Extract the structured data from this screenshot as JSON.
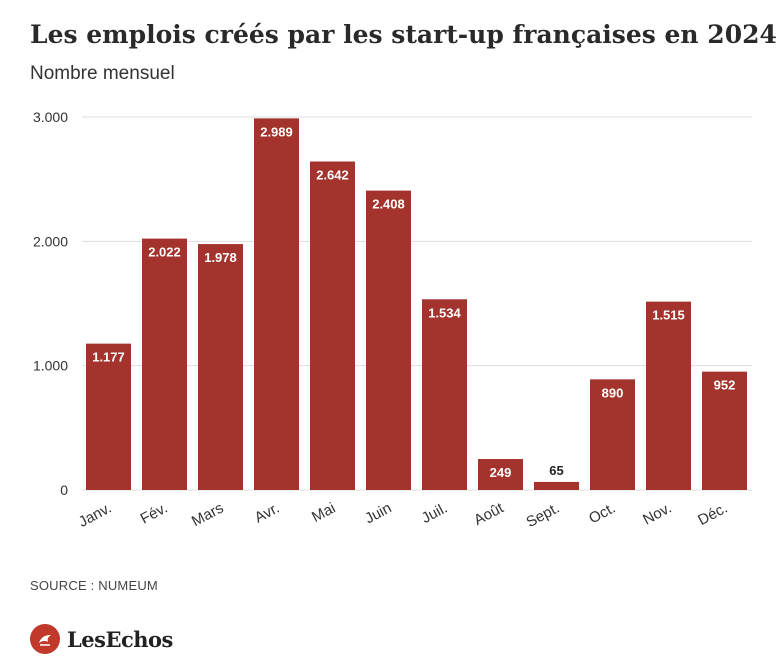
{
  "header": {
    "title": "Les emplois créés par les start-up françaises en 2024",
    "subtitle": "Nombre mensuel"
  },
  "footer": {
    "source": "SOURCE : NUMEUM",
    "brand": "LesEchos"
  },
  "colors": {
    "bar": "#a3332c",
    "grid": "#dddddd",
    "label_inside": "#ffffff",
    "label_outside": "#222222"
  },
  "chart_data": {
    "type": "bar",
    "title": "Les emplois créés par les start-up françaises en 2024",
    "subtitle": "Nombre mensuel",
    "categories": [
      "Janv.",
      "Fév.",
      "Mars",
      "Avr.",
      "Mai",
      "Juin",
      "Juil.",
      "Août",
      "Sept.",
      "Oct.",
      "Nov.",
      "Déc."
    ],
    "values": [
      1177,
      2022,
      1978,
      2989,
      2642,
      2408,
      1534,
      249,
      65,
      890,
      1515,
      952
    ],
    "value_labels": [
      "1.177",
      "2.022",
      "1.978",
      "2.989",
      "2.642",
      "2.408",
      "1.534",
      "249",
      "65",
      "890",
      "1.515",
      "952"
    ],
    "ylim": [
      0,
      3000
    ],
    "yticks": [
      0,
      1000,
      2000,
      3000
    ],
    "ytick_labels": [
      "0",
      "1.000",
      "2.000",
      "3.000"
    ],
    "grid": true,
    "legend": "none"
  }
}
